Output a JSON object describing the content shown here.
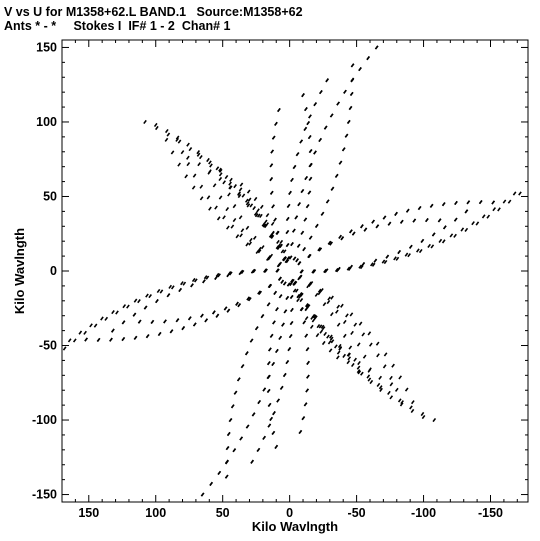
{
  "header": {
    "line1": "V vs U for M1358+62.L BAND.1   Source:M1358+62",
    "line2": "Ants * - *     Stokes I  IF# 1 - 2  Chan# 1"
  },
  "chart_data": {
    "type": "scatter",
    "title": "V vs U for M1358+62.L BAND.1   Source:M1358+62",
    "subtitle": "Ants * - *     Stokes I  IF# 1 - 2  Chan# 1",
    "xlabel": "Kilo Wavlngth",
    "ylabel": "Kilo Wavlngth",
    "xlim": [
      170,
      -178
    ],
    "ylim": [
      -155,
      155
    ],
    "x_ticks": [
      150,
      100,
      50,
      0,
      -50,
      -100,
      -150
    ],
    "y_ticks": [
      150,
      100,
      50,
      0,
      -50,
      -100,
      -150
    ],
    "x_tick_labels": [
      "150",
      "100",
      "50",
      "0",
      "-50",
      "-100",
      "-150"
    ],
    "y_tick_labels": [
      "150",
      "100",
      "50",
      "0",
      "-50",
      "-100",
      "-150"
    ],
    "grid": false,
    "marker_color": "#000000",
    "series": [
      {
        "track_endpoints": [
          [
            -65,
            150
          ],
          [
            -47,
            138
          ],
          [
            -28,
            128
          ],
          [
            -10,
            118
          ],
          [
            8,
            108
          ],
          [
            -172,
            52
          ],
          [
            -152,
            46
          ],
          [
            -132,
            40
          ],
          [
            -112,
            34
          ],
          [
            -108,
            -100
          ],
          [
            -92,
            -88
          ],
          [
            -76,
            -76
          ],
          [
            -60,
            -66
          ],
          [
            -44,
            -56
          ],
          [
            65,
            -150
          ],
          [
            47,
            -138
          ],
          [
            28,
            -128
          ],
          [
            10,
            -118
          ],
          [
            -8,
            -108
          ],
          [
            168,
            -52
          ],
          [
            152,
            -46
          ],
          [
            132,
            -40
          ],
          [
            112,
            -34
          ],
          [
            100,
            98
          ],
          [
            84,
            88
          ],
          [
            68,
            78
          ],
          [
            52,
            68
          ],
          [
            36,
            58
          ]
        ]
      }
    ]
  }
}
